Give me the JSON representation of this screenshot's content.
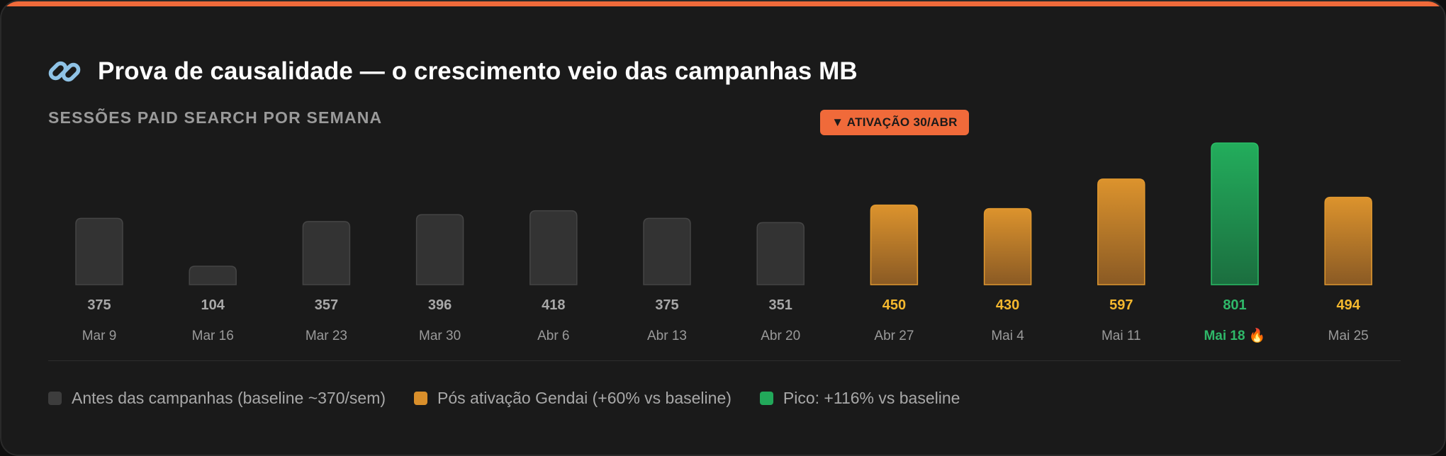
{
  "title": "Prova de causalidade — o crescimento veio das campanhas MB",
  "title_icon": "link-icon",
  "subtitle": "SESSÕES PAID SEARCH POR SEMANA",
  "activation_badge": "▼ ATIVAÇÃO 30/ABR",
  "colors": {
    "accent": "#f06a3a",
    "baseline": "#333333",
    "post_activation": "#d98f2b",
    "peak": "#22a85a",
    "post_value_text": "#f5b82e",
    "peak_value_text": "#2fb869",
    "baseline_value_text": "#a8a8a8"
  },
  "chart_data": {
    "type": "bar",
    "title": "Prova de causalidade — o crescimento veio das campanhas MB",
    "subtitle": "SESSÕES PAID SEARCH POR SEMANA",
    "categories": [
      "Mar 9",
      "Mar 16",
      "Mar 23",
      "Mar 30",
      "Abr 6",
      "Abr 13",
      "Abr 20",
      "Abr 27",
      "Mai 4",
      "Mai 11",
      "Mai 18 🔥",
      "Mai 25"
    ],
    "values": [
      375,
      104,
      357,
      396,
      418,
      375,
      351,
      450,
      430,
      597,
      801,
      494
    ],
    "groups": [
      "baseline",
      "baseline",
      "baseline",
      "baseline",
      "baseline",
      "baseline",
      "baseline",
      "post",
      "post",
      "post",
      "peak",
      "post"
    ],
    "ylim": [
      0,
      801
    ],
    "grid": false,
    "legend_position": "bottom",
    "annotation": "▼ ATIVAÇÃO 30/ABR"
  },
  "legend": [
    {
      "label": "Antes das campanhas (baseline ~370/sem)",
      "group": "baseline"
    },
    {
      "label": "Pós ativação Gendai (+60% vs baseline)",
      "group": "post"
    },
    {
      "label": "Pico: +116% vs baseline",
      "group": "peak"
    }
  ]
}
